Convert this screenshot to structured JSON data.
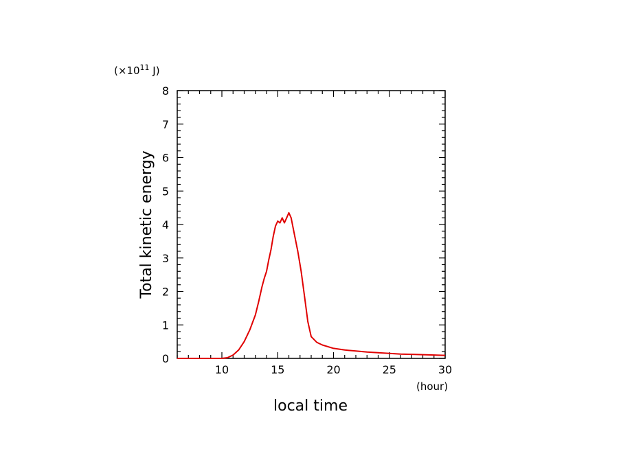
{
  "chart_data": {
    "type": "line",
    "xlabel": "local time",
    "ylabel": "Total kinetic energy",
    "x_unit_label": "(hour)",
    "y_unit_prefix": "(×10",
    "y_unit_exp": "11",
    "y_unit_suffix": " J)",
    "xlim": [
      6,
      30
    ],
    "ylim": [
      0,
      8
    ],
    "x_ticks": [
      10,
      15,
      20,
      25,
      30
    ],
    "y_ticks": [
      0,
      1,
      2,
      3,
      4,
      5,
      6,
      7,
      8
    ],
    "grid": false,
    "series": [
      {
        "color": "#e00000",
        "x": [
          6,
          8,
          9,
          10,
          10.5,
          11,
          11.5,
          12,
          12.5,
          13,
          13.3,
          13.6,
          13.8,
          14.0,
          14.2,
          14.4,
          14.6,
          14.8,
          15.0,
          15.2,
          15.4,
          15.6,
          15.8,
          16.0,
          16.2,
          16.5,
          16.8,
          17.1,
          17.4,
          17.7,
          18.0,
          18.5,
          19,
          20,
          21,
          22,
          23,
          24,
          25,
          26,
          27,
          28,
          29,
          30
        ],
        "y": [
          0,
          0,
          0,
          0,
          0.02,
          0.1,
          0.25,
          0.5,
          0.85,
          1.3,
          1.7,
          2.15,
          2.4,
          2.6,
          2.95,
          3.25,
          3.65,
          3.95,
          4.1,
          4.05,
          4.2,
          4.05,
          4.2,
          4.35,
          4.2,
          3.7,
          3.2,
          2.6,
          1.85,
          1.1,
          0.65,
          0.48,
          0.4,
          0.3,
          0.25,
          0.22,
          0.19,
          0.17,
          0.15,
          0.13,
          0.12,
          0.11,
          0.1,
          0.09
        ]
      }
    ]
  }
}
